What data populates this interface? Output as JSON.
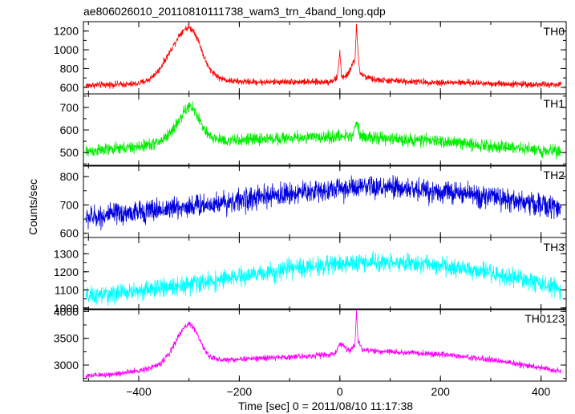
{
  "chart_data": {
    "type": "line",
    "title": "ae806026010_20110810111738_wam3_trn_4band_long.qdp",
    "xlabel": "Time [sec] 0 = 2011/08/10 11:17:38",
    "ylabel": "Counts/sec",
    "xlim": [
      -510,
      450
    ],
    "xticks": [
      -400,
      -200,
      0,
      200,
      400
    ],
    "x_tick_labels": [
      "−400",
      "−200",
      "0",
      "200",
      "400"
    ],
    "grid": false,
    "panels": [
      {
        "name": "TH0",
        "color": "#ff0000",
        "ylim": [
          530,
          1300
        ],
        "yticks": [
          600,
          800,
          1000,
          1200
        ],
        "x": [
          -505,
          -480,
          -450,
          -420,
          -400,
          -380,
          -360,
          -340,
          -320,
          -310,
          -300,
          -290,
          -280,
          -270,
          -260,
          -240,
          -220,
          -200,
          -150,
          -100,
          -50,
          -20,
          -5,
          0,
          3,
          10,
          20,
          30,
          33,
          36,
          40,
          45,
          55,
          70,
          100,
          150,
          200,
          250,
          300,
          350,
          400,
          440
        ],
        "values": [
          620,
          625,
          630,
          630,
          640,
          680,
          780,
          960,
          1150,
          1220,
          1240,
          1200,
          1080,
          920,
          800,
          700,
          670,
          660,
          655,
          660,
          655,
          660,
          700,
          1000,
          720,
          700,
          780,
          900,
          1260,
          960,
          760,
          730,
          700,
          680,
          670,
          660,
          650,
          650,
          640,
          635,
          630,
          625
        ],
        "noise": 25
      },
      {
        "name": "TH1",
        "color": "#00ee00",
        "ylim": [
          440,
          760
        ],
        "yticks": [
          500,
          600,
          700
        ],
        "x": [
          -505,
          -450,
          -400,
          -360,
          -340,
          -320,
          -310,
          -300,
          -290,
          -280,
          -270,
          -260,
          -240,
          -220,
          -200,
          -100,
          0,
          25,
          33,
          40,
          60,
          100,
          200,
          300,
          400,
          440
        ],
        "values": [
          505,
          515,
          525,
          545,
          580,
          640,
          680,
          705,
          690,
          650,
          600,
          570,
          560,
          550,
          555,
          565,
          570,
          575,
          640,
          580,
          565,
          560,
          550,
          530,
          510,
          505
        ],
        "noise": 20
      },
      {
        "name": "TH2",
        "color": "#0000dd",
        "ylim": [
          585,
          840
        ],
        "yticks": [
          600,
          700,
          800
        ],
        "x": [
          -505,
          -400,
          -300,
          -200,
          -100,
          0,
          100,
          200,
          300,
          400,
          440
        ],
        "values": [
          655,
          675,
          695,
          715,
          740,
          758,
          760,
          748,
          728,
          700,
          685
        ],
        "noise": 30
      },
      {
        "name": "TH3",
        "color": "#00ffff",
        "ylim": [
          990,
          1390
        ],
        "yticks": [
          1000,
          1100,
          1200,
          1300
        ],
        "x": [
          -505,
          -400,
          -300,
          -200,
          -100,
          0,
          100,
          200,
          300,
          400,
          440
        ],
        "values": [
          1060,
          1095,
          1130,
          1170,
          1215,
          1245,
          1255,
          1235,
          1190,
          1135,
          1100
        ],
        "noise": 38
      },
      {
        "name": "TH0123",
        "color": "#ff00ff",
        "ylim": [
          2700,
          4050
        ],
        "yticks": [
          3000,
          3500,
          4000
        ],
        "x": [
          -505,
          -450,
          -400,
          -360,
          -340,
          -320,
          -310,
          -300,
          -290,
          -280,
          -270,
          -260,
          -240,
          -220,
          -200,
          -100,
          -10,
          0,
          20,
          30,
          33,
          36,
          45,
          60,
          100,
          200,
          300,
          400,
          440
        ],
        "values": [
          2790,
          2830,
          2890,
          3000,
          3200,
          3550,
          3700,
          3780,
          3700,
          3500,
          3300,
          3160,
          3100,
          3100,
          3110,
          3150,
          3200,
          3420,
          3250,
          3380,
          4020,
          3450,
          3300,
          3260,
          3250,
          3200,
          3100,
          2950,
          2880
        ],
        "noise": 40
      }
    ]
  }
}
